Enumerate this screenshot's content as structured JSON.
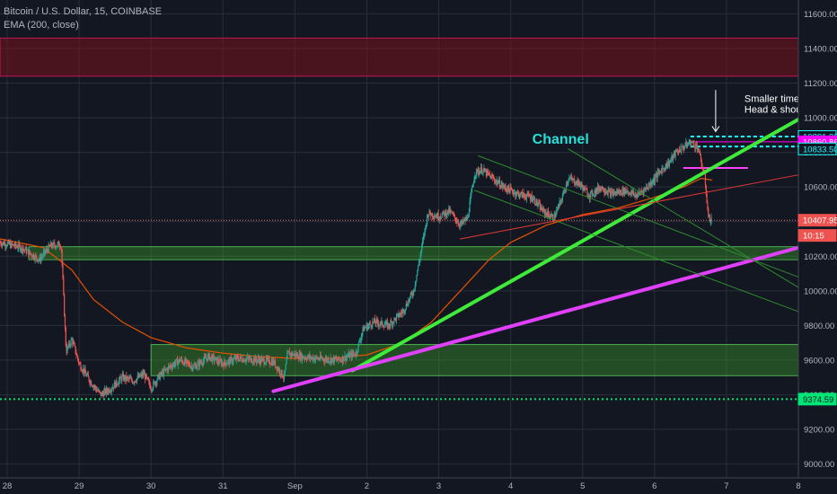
{
  "legend": {
    "symbol_line": "Bitcoin / U.S. Dollar, 15, COINBASE",
    "indicator_line": "EMA (200, close)"
  },
  "chart_data": {
    "type": "candlestick",
    "y_ticks": [
      9000,
      9200,
      9400,
      9600,
      9800,
      10000,
      10200,
      10400,
      10600,
      10800,
      11000,
      11200,
      11400,
      11600
    ],
    "y_tick_labels": [
      "9000.00",
      "9200.00",
      "9400.00",
      "9600.00",
      "9800.00",
      "10000.00",
      "10200.00",
      "10400.00",
      "10600.00",
      "10800.00",
      "11000.00",
      "11200.00",
      "11400.00",
      "11600.00"
    ],
    "x_ticks": [
      28,
      29,
      30,
      31,
      32,
      33,
      34,
      35,
      36,
      37,
      38,
      39
    ],
    "x_tick_labels": [
      "28",
      "29",
      "30",
      "31",
      "Sep",
      "2",
      "3",
      "4",
      "5",
      "6",
      "7",
      "8"
    ],
    "ylim": [
      8920,
      11680
    ],
    "xlim": [
      27.9,
      39.0
    ],
    "price_path": [
      [
        27.9,
        10280
      ],
      [
        28.2,
        10250
      ],
      [
        28.45,
        10180
      ],
      [
        28.6,
        10260
      ],
      [
        28.75,
        10270
      ],
      [
        28.8,
        9820
      ],
      [
        28.82,
        9650
      ],
      [
        28.9,
        9720
      ],
      [
        29.0,
        9580
      ],
      [
        29.15,
        9480
      ],
      [
        29.3,
        9400
      ],
      [
        29.45,
        9440
      ],
      [
        29.6,
        9500
      ],
      [
        29.75,
        9480
      ],
      [
        29.9,
        9520
      ],
      [
        30.0,
        9440
      ],
      [
        30.1,
        9500
      ],
      [
        30.25,
        9560
      ],
      [
        30.4,
        9600
      ],
      [
        30.6,
        9560
      ],
      [
        30.8,
        9620
      ],
      [
        31.0,
        9580
      ],
      [
        31.2,
        9610
      ],
      [
        31.5,
        9600
      ],
      [
        31.7,
        9590
      ],
      [
        31.85,
        9500
      ],
      [
        31.9,
        9640
      ],
      [
        32.1,
        9620
      ],
      [
        32.3,
        9610
      ],
      [
        32.6,
        9600
      ],
      [
        32.85,
        9640
      ],
      [
        32.95,
        9780
      ],
      [
        33.1,
        9820
      ],
      [
        33.3,
        9800
      ],
      [
        33.5,
        9880
      ],
      [
        33.65,
        10000
      ],
      [
        33.75,
        10220
      ],
      [
        33.85,
        10450
      ],
      [
        34.0,
        10430
      ],
      [
        34.15,
        10460
      ],
      [
        34.3,
        10380
      ],
      [
        34.4,
        10420
      ],
      [
        34.5,
        10680
      ],
      [
        34.6,
        10700
      ],
      [
        34.75,
        10650
      ],
      [
        34.9,
        10600
      ],
      [
        35.1,
        10560
      ],
      [
        35.3,
        10540
      ],
      [
        35.45,
        10460
      ],
      [
        35.6,
        10420
      ],
      [
        35.7,
        10520
      ],
      [
        35.8,
        10650
      ],
      [
        35.95,
        10620
      ],
      [
        36.1,
        10550
      ],
      [
        36.25,
        10600
      ],
      [
        36.4,
        10560
      ],
      [
        36.6,
        10580
      ],
      [
        36.75,
        10550
      ],
      [
        36.9,
        10600
      ],
      [
        37.0,
        10650
      ],
      [
        37.1,
        10700
      ],
      [
        37.2,
        10740
      ],
      [
        37.3,
        10800
      ],
      [
        37.4,
        10830
      ],
      [
        37.5,
        10860
      ],
      [
        37.6,
        10830
      ],
      [
        37.7,
        10650
      ],
      [
        37.75,
        10420
      ],
      [
        37.8,
        10407.95
      ]
    ],
    "ema_path": [
      [
        27.9,
        10300
      ],
      [
        28.5,
        10250
      ],
      [
        28.9,
        10120
      ],
      [
        29.2,
        9950
      ],
      [
        29.6,
        9820
      ],
      [
        30.0,
        9730
      ],
      [
        30.5,
        9670
      ],
      [
        31.0,
        9640
      ],
      [
        31.5,
        9620
      ],
      [
        32.0,
        9610
      ],
      [
        32.5,
        9610
      ],
      [
        33.0,
        9630
      ],
      [
        33.5,
        9700
      ],
      [
        33.9,
        9820
      ],
      [
        34.3,
        10000
      ],
      [
        34.7,
        10180
      ],
      [
        35.0,
        10280
      ],
      [
        35.5,
        10380
      ],
      [
        36.0,
        10440
      ],
      [
        36.5,
        10480
      ],
      [
        37.0,
        10540
      ],
      [
        37.4,
        10600
      ],
      [
        37.65,
        10650
      ],
      [
        37.8,
        10640
      ]
    ],
    "zones": [
      {
        "name": "resistance-zone-red",
        "y1": 11460,
        "y2": 11240,
        "x1": 27.9,
        "x2": 39.0,
        "fill": "rgba(120,18,30,0.55)",
        "stroke": "#c2185b"
      },
      {
        "name": "support-zone-upper-green",
        "y1": 10255,
        "y2": 10180,
        "x1": 28.3,
        "x2": 39.0,
        "fill": "rgba(60,160,40,0.4)",
        "stroke": "#4caf50"
      },
      {
        "name": "support-zone-lower-green",
        "y1": 9690,
        "y2": 9510,
        "x1": 30.0,
        "x2": 39.0,
        "fill": "rgba(60,160,40,0.4)",
        "stroke": "#4caf50"
      }
    ],
    "trendlines": [
      {
        "name": "green-trendline",
        "x1": 32.8,
        "y1": 9540,
        "x2": 39.0,
        "y2": 10990,
        "color": "#3fea3a",
        "width": 4
      },
      {
        "name": "magenta-trendline",
        "x1": 31.7,
        "y1": 9420,
        "x2": 39.0,
        "y2": 10250,
        "color": "#e040fb",
        "width": 4
      },
      {
        "name": "channel-upper-line",
        "x1": 34.55,
        "y1": 10780,
        "x2": 39.0,
        "y2": 10080,
        "color": "#2e8b2e",
        "width": 1
      },
      {
        "name": "channel-lower-line",
        "x1": 34.5,
        "y1": 10580,
        "x2": 39.0,
        "y2": 9880,
        "color": "#2e8b2e",
        "width": 1
      },
      {
        "name": "channel-mid-line",
        "x1": 35.8,
        "y1": 10820,
        "x2": 39.0,
        "y2": 10020,
        "color": "#2e8b2e",
        "width": 1
      },
      {
        "name": "red-trendline",
        "x1": 34.3,
        "y1": 10300,
        "x2": 39.0,
        "y2": 10670,
        "color": "#e53935",
        "width": 1
      }
    ],
    "horizontal_lines": [
      {
        "name": "current-price-line",
        "y": 10407.95,
        "x1": 27.9,
        "x2": 39.0,
        "color": "#e57373",
        "dash": "1,2"
      },
      {
        "name": "support-dotted-line",
        "y": 9374.59,
        "x1": 27.9,
        "x2": 39.0,
        "color": "#00e676",
        "dash": "2,3",
        "width": 2
      },
      {
        "name": "cyan-level-upper",
        "y": 10891.33,
        "x1": 37.5,
        "x2": 39.0,
        "color": "#18ffff",
        "dash": "4,3",
        "width": 2
      },
      {
        "name": "cyan-level-lower",
        "y": 10833.5,
        "x1": 37.5,
        "x2": 39.0,
        "color": "#18ffff",
        "dash": "4,3",
        "width": 2
      },
      {
        "name": "magenta-level",
        "y": 10860.86,
        "x1": 37.5,
        "x2": 39.0,
        "color": "#ff00ff",
        "dash": "",
        "width": 1
      },
      {
        "name": "neckline-magenta",
        "y": 10710,
        "x1": 37.4,
        "x2": 38.3,
        "color": "#ff40ff",
        "dash": "",
        "width": 2
      }
    ],
    "price_labels": [
      {
        "name": "label-10891",
        "text": "10891.33",
        "y": 10891.33,
        "bg": "#131722",
        "fg": "#18ffff",
        "border": "#18ffff"
      },
      {
        "name": "label-10860",
        "text": "10860.86",
        "y": 10860.86,
        "bg": "#ff00ff",
        "fg": "#ffffff",
        "border": "#ff00ff"
      },
      {
        "name": "label-10833",
        "text": "10833.50",
        "y": 10820,
        "bg": "#131722",
        "fg": "#18ffff",
        "border": "#18ffff"
      },
      {
        "name": "label-10407",
        "text": "10407.95",
        "y": 10407.95,
        "bg": "#ef5350",
        "fg": "#ffffff",
        "border": "#ef5350"
      },
      {
        "name": "label-countdown",
        "text": "10:15",
        "y": 10320,
        "bg": "#ef5350",
        "fg": "#ffffff",
        "border": "#ef5350"
      },
      {
        "name": "label-9374",
        "text": "9374.59",
        "y": 9374.59,
        "bg": "#00e676",
        "fg": "#131722",
        "border": "#00e676"
      }
    ],
    "annotations": [
      {
        "name": "channel-label",
        "text": "Channel",
        "x": 35.3,
        "y": 10850,
        "color": "#26e0d8",
        "size": 16,
        "bold": true
      },
      {
        "name": "smaller-timeframe-label",
        "text": "Smaller timeframe",
        "x": 38.25,
        "y": 11090,
        "color": "#ffffff",
        "size": 11,
        "bold": false
      },
      {
        "name": "head-shoulders-label",
        "text": "Head & shoulders",
        "x": 38.25,
        "y": 11030,
        "color": "#ffffff",
        "size": 11,
        "bold": false
      }
    ],
    "arrow": {
      "x": 37.85,
      "y1": 11160,
      "y2": 10920,
      "color": "#ffffff"
    },
    "colors": {
      "background": "#131722",
      "grid": "#2a2e39",
      "axis_text": "#b2b5be",
      "up_candle": "#26a69a",
      "down_candle": "#ef5350",
      "ema": "#e65100"
    }
  }
}
